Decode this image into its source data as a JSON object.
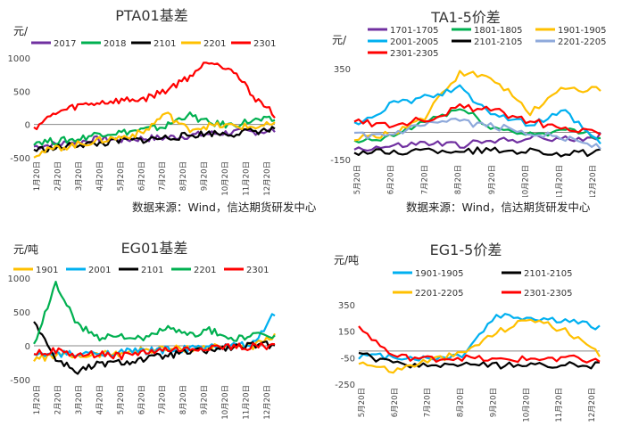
{
  "sources": [
    "数据来源：Wind，信达期货研发中心",
    "数据来源：Wind，信达期货研发中心"
  ],
  "chart_data": [
    {
      "type": "line",
      "title": "PTA01基差",
      "ylabel": "元/",
      "ylim": [
        -500,
        1000
      ],
      "yticks": [
        -500,
        0,
        500,
        1000
      ],
      "categories": [
        "1月20日",
        "2月20日",
        "3月20日",
        "4月20日",
        "5月20日",
        "6月20日",
        "7月20日",
        "8月20日",
        "9月20日",
        "10月20日",
        "11月20日",
        "12月20日"
      ],
      "legend": "top",
      "series": [
        {
          "name": "2017",
          "color": "#7030A0",
          "values": [
            -330,
            -300,
            -260,
            -220,
            -230,
            -210,
            -200,
            -170,
            -140,
            -120,
            -110,
            -90
          ]
        },
        {
          "name": "2018",
          "color": "#00B050",
          "values": [
            -260,
            -250,
            -220,
            -130,
            -120,
            -80,
            -30,
            150,
            20,
            -10,
            60,
            70
          ]
        },
        {
          "name": "2101",
          "color": "#000000",
          "values": [
            -380,
            -360,
            -300,
            -290,
            -240,
            -230,
            -200,
            -170,
            -130,
            -140,
            -100,
            -80
          ]
        },
        {
          "name": "2201",
          "color": "#FFC000",
          "values": [
            -450,
            -360,
            -300,
            -240,
            -190,
            -120,
            170,
            -70,
            -20,
            -20,
            -40,
            0
          ]
        },
        {
          "name": "2301",
          "color": "#FF0000",
          "values": [
            -50,
            170,
            280,
            330,
            360,
            380,
            510,
            700,
            960,
            850,
            430,
            150
          ]
        }
      ]
    },
    {
      "type": "line",
      "title": "TA1-5价差",
      "ylabel": "元/",
      "ylim": [
        -150,
        400
      ],
      "yticks": [
        -150,
        350
      ],
      "categories": [
        "5月20日",
        "6月20日",
        "7月20日",
        "8月20日",
        "9月20日",
        "10月20日",
        "11月20日",
        "12月20日"
      ],
      "legend": "top",
      "series": [
        {
          "name": "1701-1705",
          "color": "#7030A0",
          "values": [
            -90,
            -80,
            -60,
            -70,
            -50,
            -30,
            -40,
            -20
          ]
        },
        {
          "name": "1801-1805",
          "color": "#00B050",
          "values": [
            -60,
            -30,
            60,
            130,
            20,
            -10,
            10,
            -20
          ]
        },
        {
          "name": "1901-1905",
          "color": "#FFC000",
          "values": [
            -40,
            -10,
            80,
            330,
            290,
            110,
            250,
            230
          ]
        },
        {
          "name": "2001-2005",
          "color": "#00B0F0",
          "values": [
            40,
            150,
            190,
            240,
            100,
            40,
            110,
            -70
          ]
        },
        {
          "name": "2101-2105",
          "color": "#000000",
          "values": [
            -110,
            -110,
            -100,
            -100,
            -100,
            -100,
            -120,
            -110
          ]
        },
        {
          "name": "2201-2205",
          "color": "#8EA9DB",
          "values": [
            -20,
            -20,
            40,
            60,
            30,
            0,
            -30,
            -80
          ]
        },
        {
          "name": "2301-2305",
          "color": "#FF0000",
          "values": [
            60,
            40,
            70,
            140,
            120,
            60,
            20,
            -10
          ]
        }
      ]
    },
    {
      "type": "line",
      "title": "EG01基差",
      "ylabel": "元/吨",
      "ylim": [
        -500,
        1000
      ],
      "yticks": [
        -500,
        0,
        500,
        1000
      ],
      "categories": [
        "1月20日",
        "2月20日",
        "3月20日",
        "4月20日",
        "5月20日",
        "6月20日",
        "7月20日",
        "8月20日",
        "9月20日",
        "10月20日",
        "11月20日",
        "12月20日"
      ],
      "legend": "top",
      "series": [
        {
          "name": "1901",
          "color": "#FFC000",
          "values": [
            -200,
            -140,
            -150,
            -130,
            -100,
            -60,
            -50,
            -40,
            -20,
            -10,
            0,
            130
          ]
        },
        {
          "name": "2001",
          "color": "#00B0F0",
          "values": [
            -150,
            -120,
            -130,
            -110,
            -90,
            -80,
            -60,
            -50,
            -20,
            -10,
            20,
            480
          ]
        },
        {
          "name": "2101",
          "color": "#000000",
          "values": [
            380,
            -200,
            -380,
            -270,
            -250,
            -200,
            -150,
            -100,
            -70,
            -30,
            0,
            20
          ]
        },
        {
          "name": "2201",
          "color": "#00B050",
          "values": [
            0,
            920,
            300,
            130,
            160,
            80,
            270,
            150,
            230,
            100,
            140,
            150
          ]
        },
        {
          "name": "2301",
          "color": "#FF0000",
          "values": [
            -100,
            -80,
            -150,
            -120,
            -150,
            -100,
            -60,
            -60,
            -20,
            -20,
            -10,
            0
          ]
        }
      ]
    },
    {
      "type": "line",
      "title": "EG1-5价差",
      "ylabel": "元/吨",
      "ylim": [
        -250,
        450
      ],
      "yticks": [
        -250,
        -50,
        150,
        350
      ],
      "categories": [
        "5月20日",
        "6月20日",
        "7月20日",
        "8月20日",
        "9月20日",
        "10月20日",
        "11月20日",
        "12月20日"
      ],
      "legend": "top",
      "series": [
        {
          "name": "1901-1905",
          "color": "#00B0F0",
          "values": [
            -40,
            -40,
            -60,
            -30,
            270,
            250,
            230,
            180
          ]
        },
        {
          "name": "2101-2105",
          "color": "#000000",
          "values": [
            -20,
            -100,
            -110,
            -100,
            -110,
            -110,
            -100,
            -110
          ]
        },
        {
          "name": "2201-2205",
          "color": "#FFC000",
          "values": [
            -80,
            -150,
            -70,
            -20,
            140,
            250,
            150,
            -30
          ]
        },
        {
          "name": "2301-2305",
          "color": "#FF0000",
          "values": [
            180,
            -40,
            -60,
            -50,
            -70,
            -60,
            -50,
            -80
          ]
        }
      ]
    }
  ]
}
